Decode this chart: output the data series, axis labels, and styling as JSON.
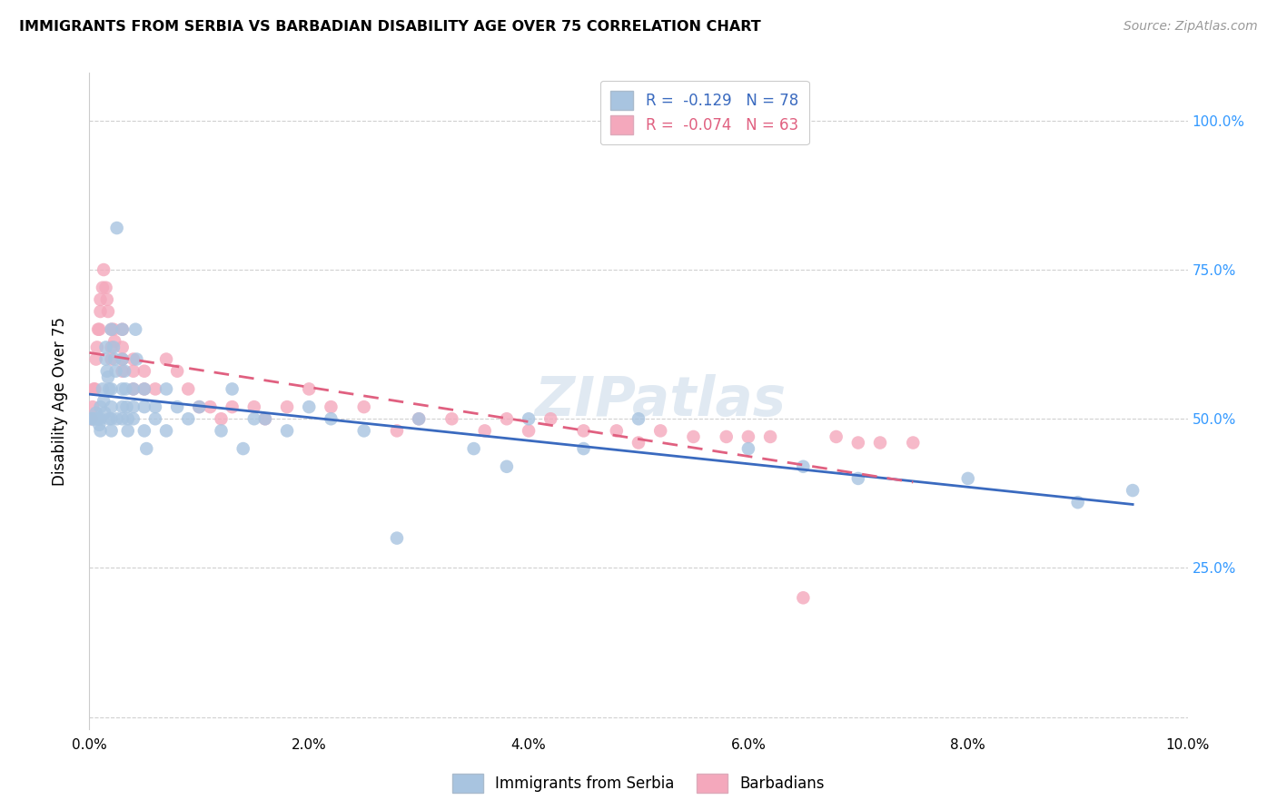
{
  "title": "IMMIGRANTS FROM SERBIA VS BARBADIAN DISABILITY AGE OVER 75 CORRELATION CHART",
  "source": "Source: ZipAtlas.com",
  "ylabel": "Disability Age Over 75",
  "xlim": [
    0.0,
    0.1
  ],
  "ylim": [
    -0.02,
    1.08
  ],
  "serbia_color": "#a8c4e0",
  "barbados_color": "#f4a8bc",
  "serbia_line_color": "#3a6abf",
  "barbados_line_color": "#e06080",
  "serbia_R": -0.129,
  "serbia_N": 78,
  "barbados_R": -0.074,
  "barbados_N": 63,
  "legend_label_1": "Immigrants from Serbia",
  "legend_label_2": "Barbadians",
  "watermark": "ZIPatlas",
  "serbia_x": [
    0.0002,
    0.0003,
    0.0004,
    0.0005,
    0.0006,
    0.0007,
    0.0008,
    0.0009,
    0.001,
    0.001,
    0.001,
    0.0012,
    0.0013,
    0.0014,
    0.0015,
    0.0015,
    0.0016,
    0.0017,
    0.0018,
    0.0018,
    0.002,
    0.002,
    0.002,
    0.002,
    0.002,
    0.0022,
    0.0023,
    0.0024,
    0.0025,
    0.0025,
    0.003,
    0.003,
    0.003,
    0.003,
    0.003,
    0.0032,
    0.0033,
    0.0034,
    0.0035,
    0.0035,
    0.004,
    0.004,
    0.004,
    0.0042,
    0.0043,
    0.005,
    0.005,
    0.005,
    0.0052,
    0.006,
    0.006,
    0.007,
    0.007,
    0.008,
    0.009,
    0.01,
    0.012,
    0.013,
    0.014,
    0.015,
    0.016,
    0.018,
    0.02,
    0.022,
    0.025,
    0.028,
    0.03,
    0.035,
    0.038,
    0.04,
    0.045,
    0.05,
    0.06,
    0.065,
    0.07,
    0.08,
    0.09,
    0.095
  ],
  "serbia_y": [
    0.5,
    0.5,
    0.5,
    0.5,
    0.51,
    0.5,
    0.5,
    0.49,
    0.52,
    0.48,
    0.5,
    0.55,
    0.53,
    0.51,
    0.62,
    0.6,
    0.58,
    0.57,
    0.55,
    0.5,
    0.5,
    0.48,
    0.52,
    0.55,
    0.65,
    0.62,
    0.6,
    0.58,
    0.82,
    0.5,
    0.65,
    0.6,
    0.55,
    0.52,
    0.5,
    0.58,
    0.55,
    0.52,
    0.5,
    0.48,
    0.55,
    0.52,
    0.5,
    0.65,
    0.6,
    0.55,
    0.52,
    0.48,
    0.45,
    0.52,
    0.5,
    0.55,
    0.48,
    0.52,
    0.5,
    0.52,
    0.48,
    0.55,
    0.45,
    0.5,
    0.5,
    0.48,
    0.52,
    0.5,
    0.48,
    0.3,
    0.5,
    0.45,
    0.42,
    0.5,
    0.45,
    0.5,
    0.45,
    0.42,
    0.4,
    0.4,
    0.36,
    0.38
  ],
  "barbados_x": [
    0.0002,
    0.0003,
    0.0004,
    0.0005,
    0.0006,
    0.0007,
    0.0008,
    0.0009,
    0.001,
    0.001,
    0.0012,
    0.0013,
    0.0015,
    0.0016,
    0.0017,
    0.002,
    0.002,
    0.002,
    0.0022,
    0.0023,
    0.003,
    0.003,
    0.003,
    0.003,
    0.004,
    0.004,
    0.004,
    0.005,
    0.005,
    0.006,
    0.007,
    0.008,
    0.009,
    0.01,
    0.011,
    0.012,
    0.013,
    0.015,
    0.016,
    0.018,
    0.02,
    0.022,
    0.025,
    0.028,
    0.03,
    0.033,
    0.036,
    0.038,
    0.04,
    0.042,
    0.045,
    0.048,
    0.05,
    0.052,
    0.055,
    0.058,
    0.06,
    0.062,
    0.065,
    0.068,
    0.07,
    0.072,
    0.075
  ],
  "barbados_y": [
    0.5,
    0.52,
    0.55,
    0.55,
    0.6,
    0.62,
    0.65,
    0.65,
    0.68,
    0.7,
    0.72,
    0.75,
    0.72,
    0.7,
    0.68,
    0.65,
    0.62,
    0.6,
    0.65,
    0.63,
    0.65,
    0.62,
    0.6,
    0.58,
    0.6,
    0.58,
    0.55,
    0.58,
    0.55,
    0.55,
    0.6,
    0.58,
    0.55,
    0.52,
    0.52,
    0.5,
    0.52,
    0.52,
    0.5,
    0.52,
    0.55,
    0.52,
    0.52,
    0.48,
    0.5,
    0.5,
    0.48,
    0.5,
    0.48,
    0.5,
    0.48,
    0.48,
    0.46,
    0.48,
    0.47,
    0.47,
    0.47,
    0.47,
    0.2,
    0.47,
    0.46,
    0.46,
    0.46
  ]
}
